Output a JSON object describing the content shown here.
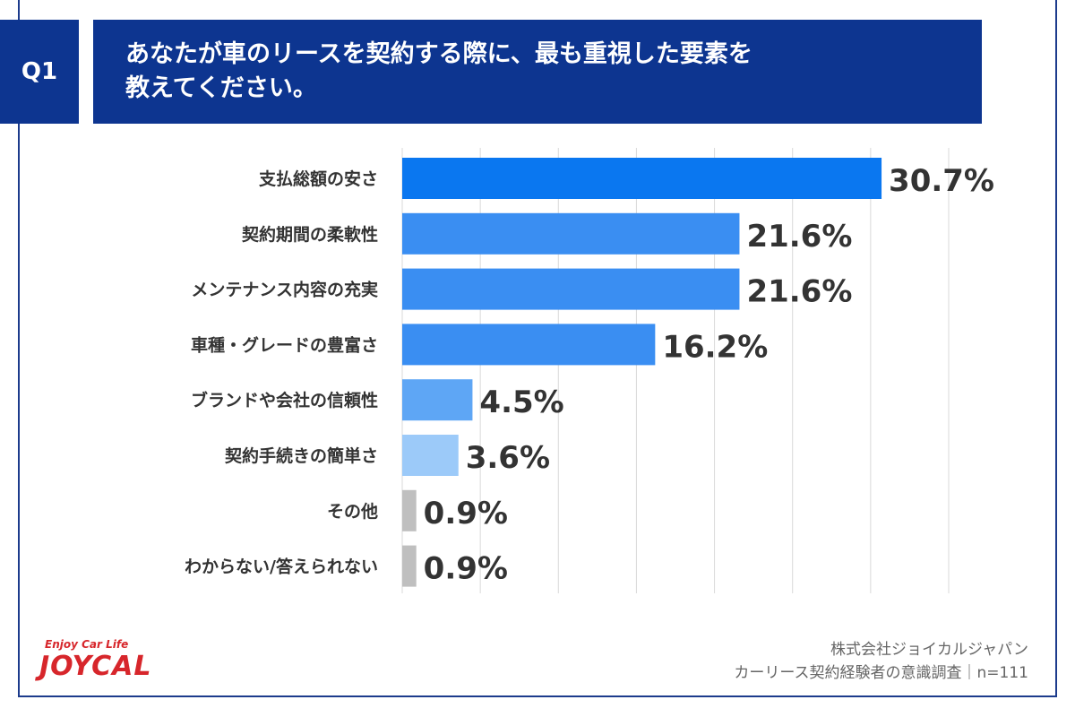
{
  "question": {
    "badge": "Q1",
    "title": "あなたが車のリースを契約する際に、最も重視した要素を\n教えてください。"
  },
  "chart_data": {
    "type": "bar",
    "orientation": "horizontal",
    "categories": [
      "支払総額の安さ",
      "契約期間の柔軟性",
      "メンテナンス内容の充実",
      "車種・グレードの豊富さ",
      "ブランドや会社の信頼性",
      "契約手続きの簡単さ",
      "その他",
      "わからない/答えられない"
    ],
    "values": [
      30.7,
      21.6,
      21.6,
      16.2,
      4.5,
      3.6,
      0.9,
      0.9
    ],
    "value_labels": [
      "30.7%",
      "21.6%",
      "21.6%",
      "16.2%",
      "4.5%",
      "3.6%",
      "0.9%",
      "0.9%"
    ],
    "bar_colors": [
      "#0a77f0",
      "#3a8ef2",
      "#3a8ef2",
      "#3a8ef2",
      "#5ea6f5",
      "#9ccaf9",
      "#bfbfbf",
      "#bfbfbf"
    ],
    "xlim": [
      0,
      35
    ],
    "grid": true
  },
  "footer": {
    "company": "株式会社ジョイカルジャパン",
    "survey": "カーリース契約経験者の意識調査｜n=111"
  },
  "logo": {
    "tagline": "Enjoy Car Life",
    "name": "JOYCAL"
  }
}
